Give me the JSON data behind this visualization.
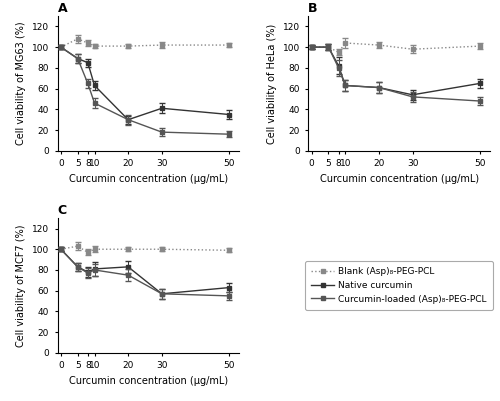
{
  "x": [
    0,
    5,
    8,
    10,
    20,
    30,
    50
  ],
  "panel_A": {
    "title": "A",
    "ylabel": "Cell viability of MG63 (%)",
    "blank": [
      100,
      108,
      104,
      101,
      101,
      102,
      102
    ],
    "blank_err": [
      2,
      4,
      3,
      2,
      2,
      3,
      2
    ],
    "native": [
      100,
      89,
      85,
      63,
      30,
      41,
      35
    ],
    "native_err": [
      2,
      4,
      4,
      4,
      4,
      5,
      4
    ],
    "curcumin": [
      100,
      89,
      65,
      46,
      30,
      18,
      16
    ],
    "curcumin_err": [
      2,
      4,
      4,
      5,
      5,
      4,
      3
    ]
  },
  "panel_B": {
    "title": "B",
    "ylabel": "Cell viability of HeLa (%)",
    "blank": [
      100,
      100,
      95,
      104,
      102,
      98,
      101
    ],
    "blank_err": [
      2,
      3,
      3,
      5,
      3,
      4,
      3
    ],
    "native": [
      100,
      100,
      82,
      63,
      61,
      54,
      65
    ],
    "native_err": [
      2,
      3,
      8,
      5,
      5,
      5,
      4
    ],
    "curcumin": [
      100,
      100,
      80,
      63,
      61,
      52,
      48
    ],
    "curcumin_err": [
      2,
      3,
      8,
      5,
      5,
      5,
      4
    ]
  },
  "panel_C": {
    "title": "C",
    "ylabel": "Cell viability of MCF7 (%)",
    "blank": [
      100,
      103,
      97,
      100,
      100,
      100,
      99
    ],
    "blank_err": [
      2,
      4,
      3,
      3,
      2,
      2,
      2
    ],
    "native": [
      100,
      83,
      78,
      81,
      83,
      57,
      63
    ],
    "native_err": [
      2,
      4,
      5,
      7,
      6,
      5,
      4
    ],
    "curcumin": [
      100,
      83,
      77,
      80,
      75,
      57,
      55
    ],
    "curcumin_err": [
      2,
      4,
      5,
      6,
      6,
      5,
      4
    ]
  },
  "xlabel": "Curcumin concentration (μg/mL)",
  "ylim": [
    0,
    130
  ],
  "yticks": [
    0,
    20,
    40,
    60,
    80,
    100,
    120
  ],
  "xticks": [
    0,
    5,
    8,
    10,
    20,
    30,
    50
  ],
  "xlim": [
    -1,
    53
  ],
  "legend_labels": [
    "Blank (Asp)₈-PEG-PCL",
    "Native curcumin",
    "Curcumin-loaded (Asp)₈-PEG-PCL"
  ],
  "color_blank": "#888888",
  "color_native": "#333333",
  "color_curcumin": "#555555",
  "marker": "s",
  "marker_size": 3.5,
  "linewidth": 1.0
}
